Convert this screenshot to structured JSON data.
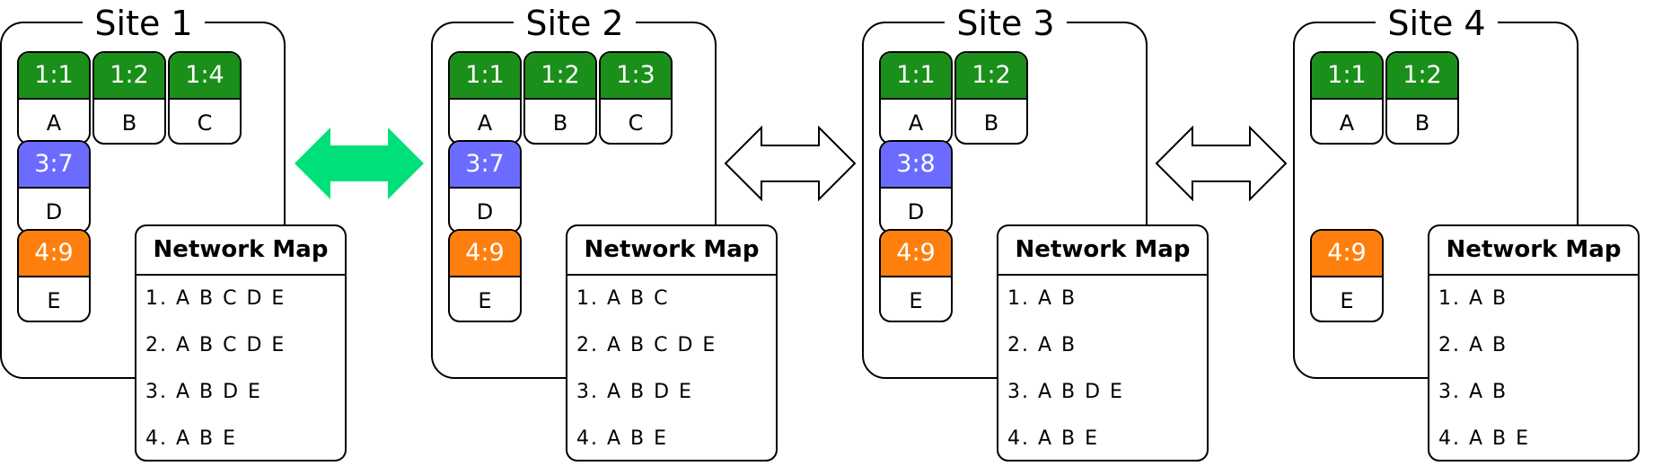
{
  "colors": {
    "group1": "#1a8f1a",
    "group3": "#6b6bff",
    "group4": "#ff7f0e",
    "active_arrow": "#00e07a"
  },
  "sites": [
    {
      "title": "Site 1",
      "nodes": [
        {
          "id": "1:1",
          "name": "A",
          "group": "group1"
        },
        {
          "id": "1:2",
          "name": "B",
          "group": "group1"
        },
        {
          "id": "1:4",
          "name": "C",
          "group": "group1"
        },
        {
          "id": "3:7",
          "name": "D",
          "group": "group3"
        },
        {
          "id": "4:9",
          "name": "E",
          "group": "group4"
        }
      ],
      "network_map": {
        "title": "Network Map",
        "rows": [
          "1. A B C D E",
          "2. A B C D E",
          "3. A B D E",
          "4. A B E"
        ]
      }
    },
    {
      "title": "Site 2",
      "nodes": [
        {
          "id": "1:1",
          "name": "A",
          "group": "group1"
        },
        {
          "id": "1:2",
          "name": "B",
          "group": "group1"
        },
        {
          "id": "1:3",
          "name": "C",
          "group": "group1"
        },
        {
          "id": "3:7",
          "name": "D",
          "group": "group3"
        },
        {
          "id": "4:9",
          "name": "E",
          "group": "group4"
        }
      ],
      "network_map": {
        "title": "Network Map",
        "rows": [
          "1. A B C",
          "2. A B C D E",
          "3. A B D E",
          "4. A B E"
        ]
      }
    },
    {
      "title": "Site 3",
      "nodes": [
        {
          "id": "1:1",
          "name": "A",
          "group": "group1"
        },
        {
          "id": "1:2",
          "name": "B",
          "group": "group1"
        },
        {
          "id": "3:8",
          "name": "D",
          "group": "group3"
        },
        {
          "id": "4:9",
          "name": "E",
          "group": "group4"
        }
      ],
      "network_map": {
        "title": "Network Map",
        "rows": [
          "1. A B",
          "2. A B",
          "3. A B D E",
          "4. A B E"
        ]
      }
    },
    {
      "title": "Site 4",
      "nodes": [
        {
          "id": "1:1",
          "name": "A",
          "group": "group1"
        },
        {
          "id": "1:2",
          "name": "B",
          "group": "group1"
        },
        {
          "id": "4:9",
          "name": "E",
          "group": "group4"
        }
      ],
      "network_map": {
        "title": "Network Map",
        "rows": [
          "1. A B",
          "2. A B",
          "3. A B",
          "4. A B E"
        ]
      }
    }
  ],
  "links": [
    {
      "between": [
        "Site 1",
        "Site 2"
      ],
      "state": "active"
    },
    {
      "between": [
        "Site 2",
        "Site 3"
      ],
      "state": "inactive"
    },
    {
      "between": [
        "Site 3",
        "Site 4"
      ],
      "state": "inactive"
    }
  ]
}
